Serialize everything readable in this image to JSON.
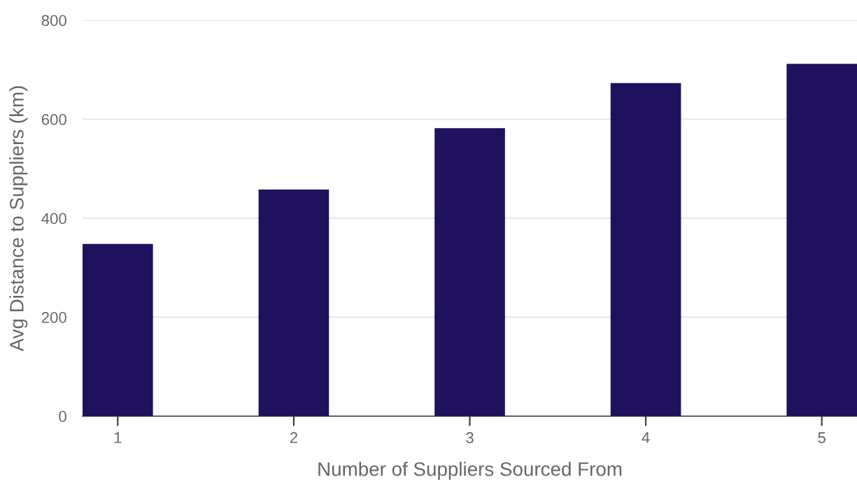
{
  "chart_data": {
    "type": "bar",
    "xlabel": "Number of Suppliers Sourced From",
    "ylabel": "Avg Distance to Suppliers (km)",
    "categories": [
      "1",
      "2",
      "3",
      "4",
      "5"
    ],
    "values": [
      348,
      458,
      582,
      673,
      712
    ],
    "color": "#20115e",
    "ylim": [
      0,
      800
    ],
    "yticks": [
      0,
      200,
      400,
      600,
      800
    ],
    "grid": "y",
    "legend": false
  }
}
